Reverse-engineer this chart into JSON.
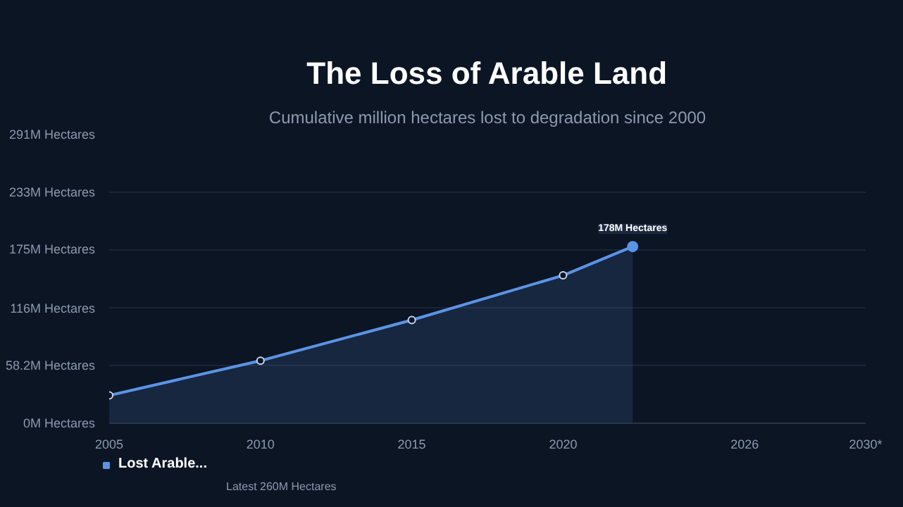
{
  "chart_data": {
    "type": "area",
    "title": "The Loss of Arable Land",
    "subtitle": "Cumulative million hectares lost to degradation since 2000",
    "x": [
      2005,
      2010,
      2015,
      2020,
      2022.3
    ],
    "series": [
      {
        "name": "Lost Arable...",
        "color": "#5b94e6",
        "values": [
          28,
          63,
          104,
          149,
          178
        ],
        "value_labels": [
          null,
          null,
          null,
          null,
          "178M Hectares"
        ]
      }
    ],
    "xlim": [
      2005,
      2030
    ],
    "xticks": [
      2005,
      2010,
      2015,
      2020,
      2026,
      {
        "value": 2030,
        "label": "2030*"
      }
    ],
    "ylim": [
      0,
      291
    ],
    "yticks": [
      {
        "value": 0,
        "label": "0M Hectares"
      },
      {
        "value": 58.2,
        "label": "58.2M Hectares"
      },
      {
        "value": 116,
        "label": "116M Hectares"
      },
      {
        "value": 175,
        "label": "175M Hectares"
      },
      {
        "value": 233,
        "label": "233M Hectares"
      },
      {
        "value": 291,
        "label": "291M Hectares"
      }
    ],
    "annotations": [
      "Latest 260M Hectares"
    ],
    "grid": "y",
    "legend": "bottom",
    "marker": "circle",
    "line_style": "solid"
  }
}
